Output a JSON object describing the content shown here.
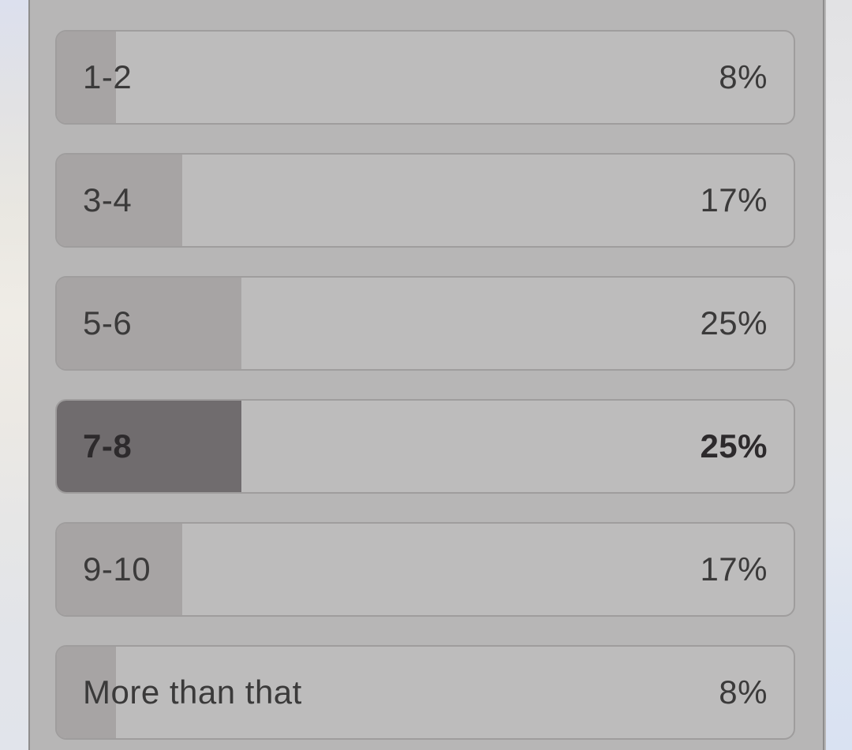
{
  "poll": {
    "options": [
      {
        "label": "1-2",
        "percent": 8,
        "percent_label": "8%",
        "selected": false
      },
      {
        "label": "3-4",
        "percent": 17,
        "percent_label": "17%",
        "selected": false
      },
      {
        "label": "5-6",
        "percent": 25,
        "percent_label": "25%",
        "selected": false
      },
      {
        "label": "7-8",
        "percent": 25,
        "percent_label": "25%",
        "selected": true
      },
      {
        "label": "9-10",
        "percent": 17,
        "percent_label": "17%",
        "selected": false
      },
      {
        "label": "More than that",
        "percent": 8,
        "percent_label": "8%",
        "selected": false
      }
    ],
    "colors": {
      "panel_bg": "#b7b6b6",
      "bar_track": "#bdbcbc",
      "bar_border": "#9f9d9d",
      "bar_fill": "#a7a4a4",
      "bar_fill_selected": "#706c6e",
      "text": "#3b3a3a",
      "text_selected": "#2d2a2c"
    }
  }
}
